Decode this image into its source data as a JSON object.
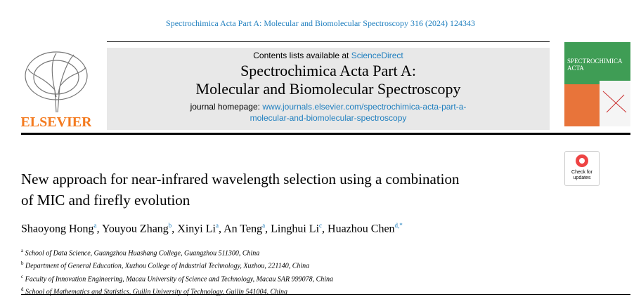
{
  "journal_ref": "Spectrochimica Acta Part A: Molecular and Biomolecular Spectroscopy 316 (2024) 124343",
  "header": {
    "contents_prefix": "Contents lists available at",
    "contents_link": "ScienceDirect",
    "journal_title": [
      "Spectrochimica Acta Part A:",
      "Molecular and Biomolecular Spectroscopy"
    ],
    "homepage_label": "journal homepage:",
    "homepage_url": [
      "www.journals.elsevier.com/spectrochimica-acta-part-a-",
      "molecular-and-biomolecular-spectroscopy"
    ]
  },
  "publisher": "ELSEVIER",
  "cover_title": [
    "SPECTROCHIMICA",
    "ACTA"
  ],
  "check_updates": [
    "Check for",
    "updates"
  ],
  "title": [
    "New approach for near-infrared wavelength selection using a combination",
    "of MIC and firefly evolution"
  ],
  "author_separator": ",",
  "authors": [
    {
      "name": "Shaoyong Hong",
      "sup": "a"
    },
    {
      "name": "Youyou Zhang",
      "sup": "b"
    },
    {
      "name": "Xinyi Li",
      "sup": "a"
    },
    {
      "name": "An Teng",
      "sup": "a"
    },
    {
      "name": "Linghui Li",
      "sup": "c"
    },
    {
      "name": "Huazhou Chen",
      "sup": "d,*"
    }
  ],
  "affiliations": [
    {
      "sup": "a",
      "text": "School of Data Science, Guangzhou Huashang College, Guangzhou 511300, China"
    },
    {
      "sup": "b",
      "text": "Department of General Education, Xuzhou College of Industrial Technology, Xuzhou, 221140, China"
    },
    {
      "sup": "c",
      "text": "Faculty of Innovation Engineering, Macau University of Science and Technology, Macau SAR 999078, China"
    },
    {
      "sup": "d",
      "text": "School of Mathematics and Statistics, Guilin University of Technology, Guilin 541004, China"
    }
  ]
}
